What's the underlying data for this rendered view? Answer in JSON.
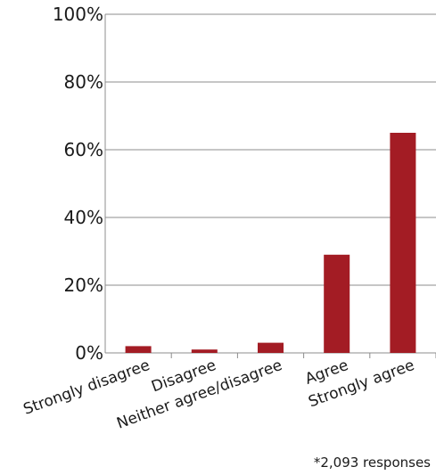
{
  "chart_data": {
    "type": "bar",
    "categories": [
      "Strongly disagree",
      "Disagree",
      "Neither agree/disagree",
      "Agree",
      "Strongly agree"
    ],
    "values": [
      2,
      1,
      3,
      29,
      65
    ],
    "ylim": [
      0,
      100
    ],
    "yticks": [
      0,
      20,
      40,
      60,
      80,
      100
    ],
    "ytick_labels": [
      "0%",
      "20%",
      "40%",
      "60%",
      "80%",
      "100%"
    ],
    "grid": true,
    "legend": "none",
    "bar_color": "#a31c24",
    "grid_color": "#8c8c8c"
  },
  "footnote": "*2,093 responses"
}
